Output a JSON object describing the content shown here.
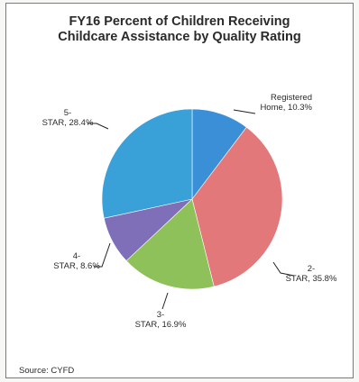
{
  "chart_data": {
    "type": "pie",
    "title": "FY16 Percent of Children Receiving\nChildcare Assistance  by Quality Rating",
    "categories": [
      "Registered Home",
      "2-STAR",
      "3-STAR",
      "4-STAR",
      "5-STAR"
    ],
    "values": [
      10.3,
      35.8,
      16.9,
      8.6,
      28.4
    ],
    "labels": [
      [
        "Registered",
        "Home, 10.3%"
      ],
      [
        "2-",
        "STAR, 35.8%"
      ],
      [
        "3-",
        "STAR, 16.9%"
      ],
      [
        "4-",
        "STAR, 8.6%"
      ],
      [
        "5-",
        "STAR, 28.4%"
      ]
    ],
    "colors": [
      "#3b8fd6",
      "#e3787a",
      "#8fc15a",
      "#7e6fb8",
      "#3aa0d8"
    ],
    "legend": "none",
    "source": "Source: CYFD"
  }
}
